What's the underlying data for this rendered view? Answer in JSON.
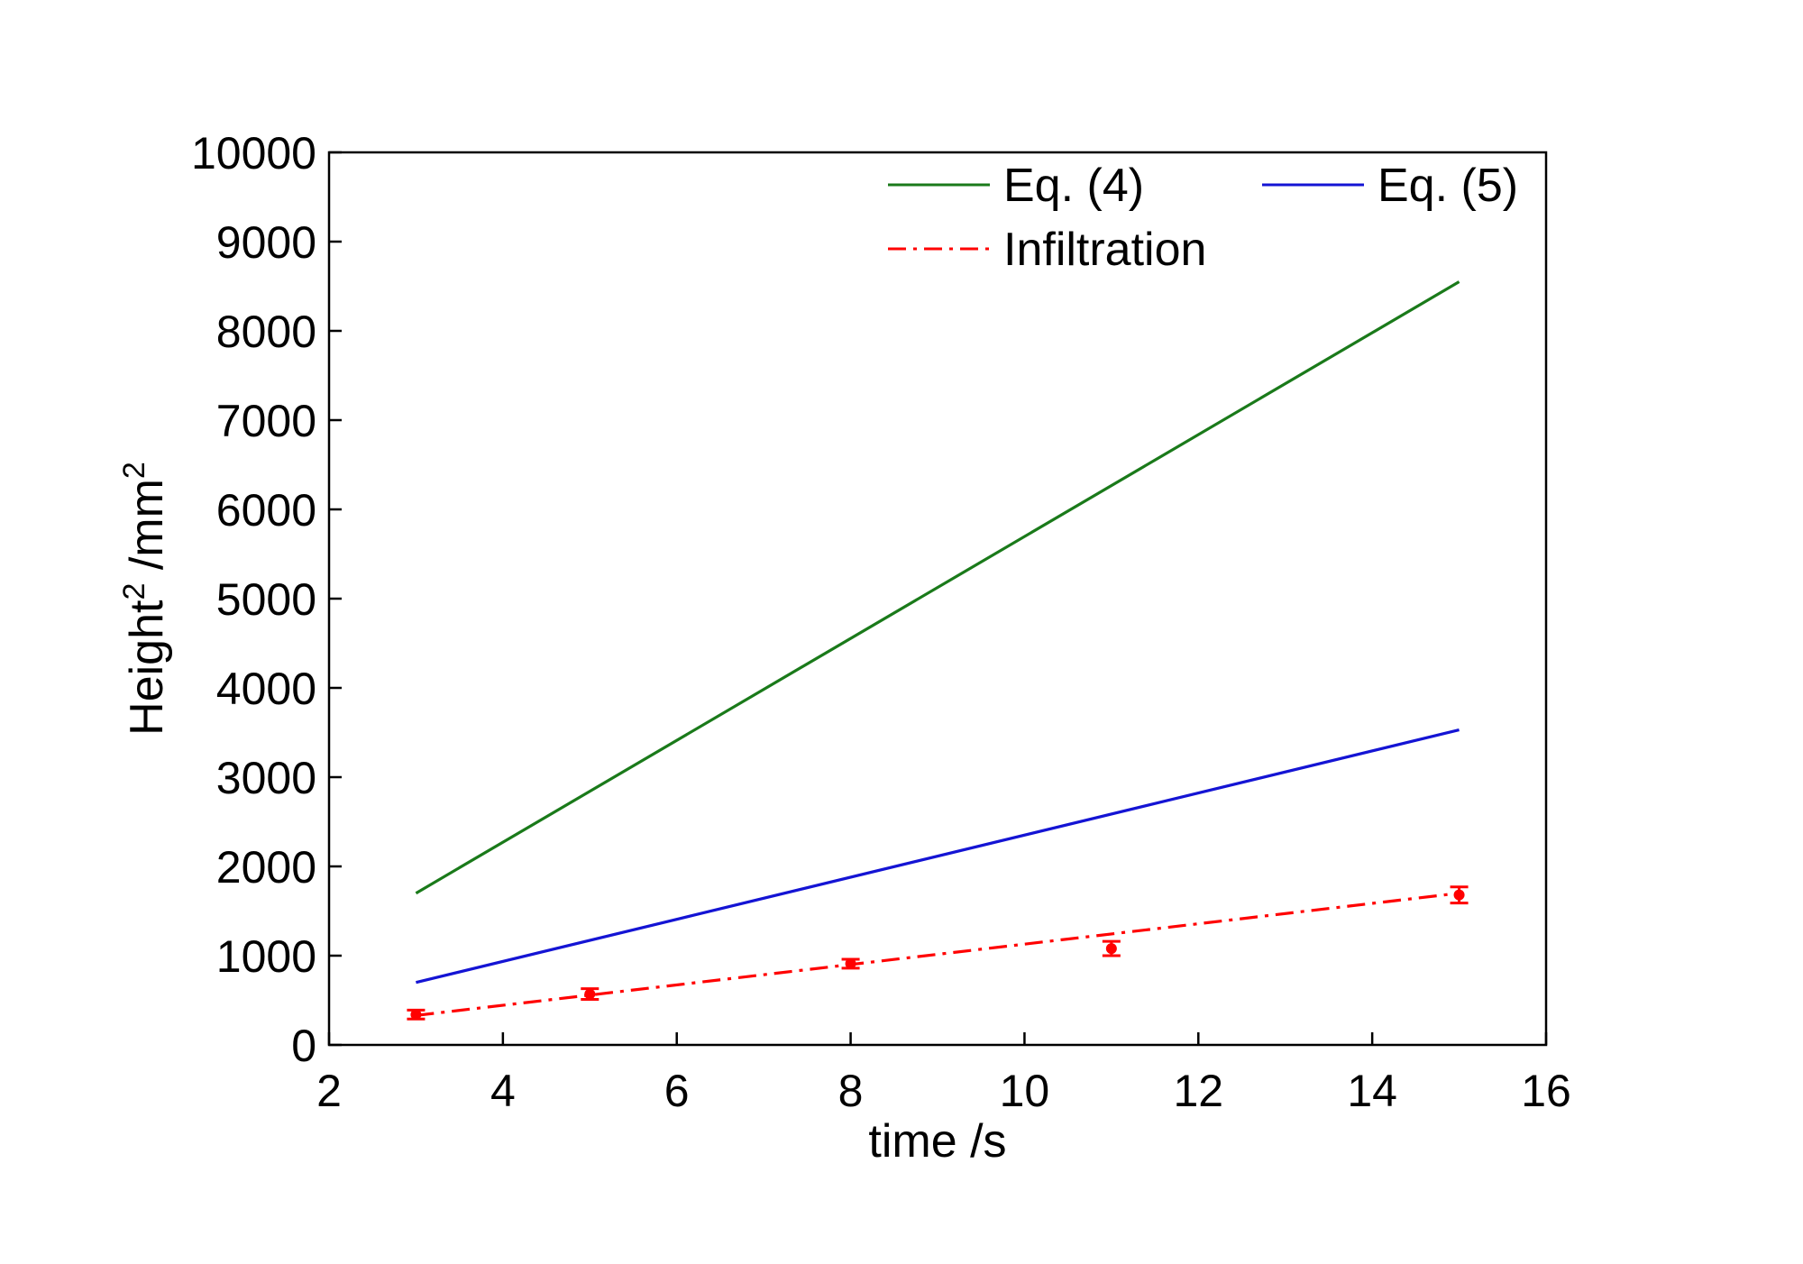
{
  "chart_data": {
    "type": "line",
    "title": "",
    "xlabel": "time /s",
    "ylabel": {
      "base": "Height",
      "sup1": "2",
      "unit": " /mm",
      "sup2": "2"
    },
    "xlim": [
      2,
      16
    ],
    "ylim": [
      0,
      10000
    ],
    "xticks": [
      "2",
      "4",
      "6",
      "8",
      "10",
      "12",
      "14",
      "16"
    ],
    "yticks": [
      "0",
      "1000",
      "2000",
      "3000",
      "4000",
      "5000",
      "6000",
      "7000",
      "8000",
      "9000",
      "10000"
    ],
    "grid": false,
    "legend_position": "top-right",
    "series": [
      {
        "name": "Eq. (4)",
        "style": "solid",
        "color": "#1a7a1a",
        "x": [
          3,
          15
        ],
        "y": [
          1700,
          8550
        ]
      },
      {
        "name": "Eq. (5)",
        "style": "solid",
        "color": "#1414d4",
        "x": [
          3,
          15
        ],
        "y": [
          700,
          3530
        ]
      },
      {
        "name": "Infiltration",
        "style": "dash-dot",
        "color": "#ff0000",
        "x": [
          3,
          15
        ],
        "y": [
          330,
          1700
        ]
      }
    ],
    "points": {
      "series": "Infiltration",
      "color": "#ff0000",
      "x": [
        3,
        5,
        8,
        11,
        15
      ],
      "y": [
        340,
        570,
        910,
        1080,
        1680
      ],
      "error": [
        50,
        60,
        50,
        80,
        90
      ]
    }
  }
}
